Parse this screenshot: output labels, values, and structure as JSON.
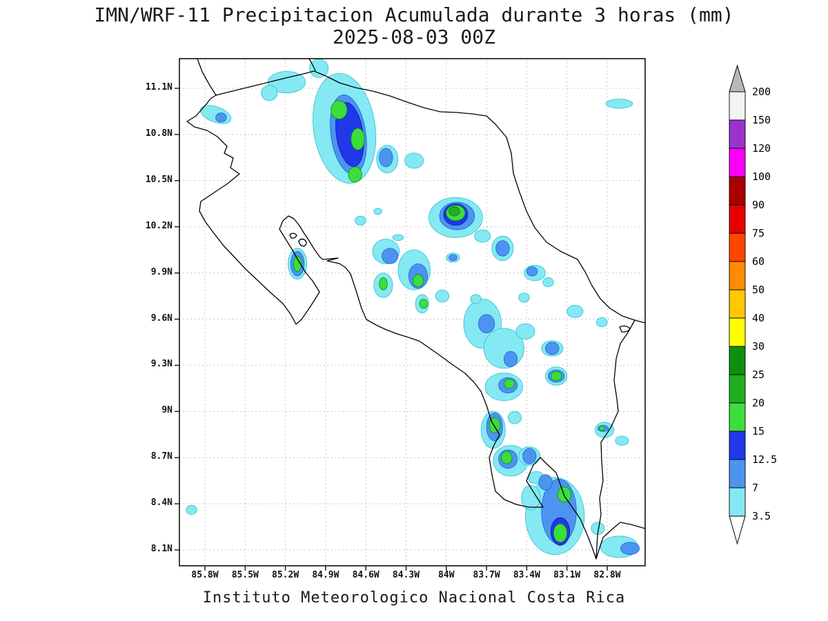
{
  "title": {
    "line1": "IMN/WRF-11 Precipitacion Acumulada durante 3 horas (mm)",
    "line2": "2025-08-03 00Z"
  },
  "footer": "Instituto Meteorologico Nacional Costa Rica",
  "map": {
    "lat_ticks": [
      "11.1N",
      "10.8N",
      "10.5N",
      "10.2N",
      "9.9N",
      "9.6N",
      "9.3N",
      "9N",
      "8.7N",
      "8.4N",
      "8.1N"
    ],
    "lon_ticks": [
      "85.8W",
      "85.5W",
      "85.2W",
      "84.9W",
      "84.6W",
      "84.3W",
      "84W",
      "83.7W",
      "83.4W",
      "83.1W",
      "82.8W"
    ]
  },
  "legend": {
    "labels": [
      "200",
      "150",
      "120",
      "100",
      "90",
      "75",
      "60",
      "50",
      "40",
      "30",
      "25",
      "20",
      "15",
      "12.5",
      "7",
      "3.5"
    ],
    "colors": [
      "#f2f2f2",
      "#9933cc",
      "#fa00fa",
      "#a80000",
      "#e80000",
      "#ff4500",
      "#ff8c00",
      "#ffc800",
      "#ffff00",
      "#0f8f0f",
      "#1fae1f",
      "#3ddd3d",
      "#2038e8",
      "#4d94f0",
      "#84e9f2"
    ],
    "above_color": "#b8b8b8",
    "below_color": "#ffffff"
  },
  "chart_data": {
    "type": "map-contour",
    "model": "IMN/WRF-11",
    "variable": "Precipitacion Acumulada durante 3 horas",
    "units": "mm",
    "valid_time": "2025-08-03 00Z",
    "region": "Costa Rica",
    "lat_range": [
      8.0,
      11.29
    ],
    "lon_range": [
      82.52,
      85.99
    ],
    "level_bounds_mm": [
      "3.5",
      "7",
      "12.5",
      "15",
      "20",
      "25",
      "30",
      "40",
      "50",
      "60",
      "75",
      "90",
      "100",
      "120",
      "150",
      "200"
    ],
    "level_key": {
      "c": "3.5-7",
      "b": "7-12.5",
      "db": "12.5-15",
      "g": "15-20",
      "dg": "20-25",
      "ddg": "25-30"
    },
    "precip_cells": [
      {
        "lat": 10.84,
        "lon": 84.76,
        "rx": 0.23,
        "ry": 0.36,
        "lvl": "c",
        "rot": -8
      },
      {
        "lat": 11.14,
        "lon": 85.19,
        "rx": 0.14,
        "ry": 0.07,
        "lvl": "c"
      },
      {
        "lat": 11.07,
        "lon": 85.32,
        "rx": 0.06,
        "ry": 0.05,
        "lvl": "c"
      },
      {
        "lat": 11.23,
        "lon": 84.95,
        "rx": 0.07,
        "ry": 0.06,
        "lvl": "c"
      },
      {
        "lat": 10.8,
        "lon": 84.73,
        "rx": 0.13,
        "ry": 0.26,
        "lvl": "b",
        "rot": -8
      },
      {
        "lat": 10.8,
        "lon": 84.72,
        "rx": 0.1,
        "ry": 0.21,
        "lvl": "db",
        "rot": -8
      },
      {
        "lat": 10.96,
        "lon": 84.8,
        "rx": 0.06,
        "ry": 0.06,
        "lvl": "g"
      },
      {
        "lat": 10.77,
        "lon": 84.66,
        "rx": 0.05,
        "ry": 0.07,
        "lvl": "g"
      },
      {
        "lat": 10.54,
        "lon": 84.68,
        "rx": 0.05,
        "ry": 0.05,
        "lvl": "g"
      },
      {
        "lat": 10.64,
        "lon": 84.44,
        "rx": 0.08,
        "ry": 0.09,
        "lvl": "c"
      },
      {
        "lat": 10.65,
        "lon": 84.45,
        "rx": 0.05,
        "ry": 0.06,
        "lvl": "b"
      },
      {
        "lat": 10.63,
        "lon": 84.24,
        "rx": 0.07,
        "ry": 0.05,
        "lvl": "c"
      },
      {
        "lat": 10.93,
        "lon": 85.72,
        "rx": 0.12,
        "ry": 0.05,
        "lvl": "c",
        "rot": 20
      },
      {
        "lat": 10.91,
        "lon": 85.68,
        "rx": 0.04,
        "ry": 0.03,
        "lvl": "b"
      },
      {
        "lat": 10.26,
        "lon": 83.93,
        "rx": 0.2,
        "ry": 0.13,
        "lvl": "c"
      },
      {
        "lat": 10.27,
        "lon": 83.92,
        "rx": 0.13,
        "ry": 0.09,
        "lvl": "b"
      },
      {
        "lat": 10.28,
        "lon": 83.93,
        "rx": 0.09,
        "ry": 0.07,
        "lvl": "db"
      },
      {
        "lat": 10.29,
        "lon": 83.93,
        "rx": 0.07,
        "ry": 0.05,
        "lvl": "g"
      },
      {
        "lat": 10.3,
        "lon": 83.94,
        "rx": 0.04,
        "ry": 0.03,
        "lvl": "dg"
      },
      {
        "lat": 10.14,
        "lon": 83.73,
        "rx": 0.06,
        "ry": 0.04,
        "lvl": "c"
      },
      {
        "lat": 10.06,
        "lon": 83.58,
        "rx": 0.08,
        "ry": 0.08,
        "lvl": "c"
      },
      {
        "lat": 10.06,
        "lon": 83.58,
        "rx": 0.05,
        "ry": 0.05,
        "lvl": "b"
      },
      {
        "lat": 9.96,
        "lon": 85.11,
        "rx": 0.07,
        "ry": 0.1,
        "lvl": "c"
      },
      {
        "lat": 9.96,
        "lon": 85.11,
        "rx": 0.05,
        "ry": 0.08,
        "lvl": "b"
      },
      {
        "lat": 9.96,
        "lon": 85.11,
        "rx": 0.03,
        "ry": 0.05,
        "lvl": "g"
      },
      {
        "lat": 10.04,
        "lon": 84.45,
        "rx": 0.1,
        "ry": 0.08,
        "lvl": "c"
      },
      {
        "lat": 10.01,
        "lon": 84.42,
        "rx": 0.06,
        "ry": 0.05,
        "lvl": "b"
      },
      {
        "lat": 9.92,
        "lon": 84.24,
        "rx": 0.12,
        "ry": 0.13,
        "lvl": "c"
      },
      {
        "lat": 9.88,
        "lon": 84.21,
        "rx": 0.07,
        "ry": 0.08,
        "lvl": "b"
      },
      {
        "lat": 9.85,
        "lon": 84.21,
        "rx": 0.04,
        "ry": 0.04,
        "lvl": "g"
      },
      {
        "lat": 9.82,
        "lon": 84.47,
        "rx": 0.07,
        "ry": 0.08,
        "lvl": "c"
      },
      {
        "lat": 9.83,
        "lon": 84.47,
        "rx": 0.03,
        "ry": 0.04,
        "lvl": "g"
      },
      {
        "lat": 9.7,
        "lon": 84.18,
        "rx": 0.05,
        "ry": 0.06,
        "lvl": "c"
      },
      {
        "lat": 9.7,
        "lon": 84.17,
        "rx": 0.03,
        "ry": 0.03,
        "lvl": "g"
      },
      {
        "lat": 9.75,
        "lon": 84.03,
        "rx": 0.05,
        "ry": 0.04,
        "lvl": "c"
      },
      {
        "lat": 9.9,
        "lon": 83.34,
        "rx": 0.08,
        "ry": 0.05,
        "lvl": "c"
      },
      {
        "lat": 9.91,
        "lon": 83.36,
        "rx": 0.04,
        "ry": 0.03,
        "lvl": "b"
      },
      {
        "lat": 9.84,
        "lon": 83.24,
        "rx": 0.04,
        "ry": 0.03,
        "lvl": "c"
      },
      {
        "lat": 9.65,
        "lon": 83.04,
        "rx": 0.06,
        "ry": 0.04,
        "lvl": "c"
      },
      {
        "lat": 9.58,
        "lon": 82.84,
        "rx": 0.04,
        "ry": 0.03,
        "lvl": "c"
      },
      {
        "lat": 9.57,
        "lon": 83.73,
        "rx": 0.14,
        "ry": 0.16,
        "lvl": "c"
      },
      {
        "lat": 9.41,
        "lon": 83.57,
        "rx": 0.15,
        "ry": 0.13,
        "lvl": "c"
      },
      {
        "lat": 9.57,
        "lon": 83.7,
        "rx": 0.06,
        "ry": 0.06,
        "lvl": "b"
      },
      {
        "lat": 9.34,
        "lon": 83.52,
        "rx": 0.05,
        "ry": 0.05,
        "lvl": "b"
      },
      {
        "lat": 9.52,
        "lon": 83.41,
        "rx": 0.07,
        "ry": 0.05,
        "lvl": "c"
      },
      {
        "lat": 9.41,
        "lon": 83.21,
        "rx": 0.08,
        "ry": 0.05,
        "lvl": "c"
      },
      {
        "lat": 9.41,
        "lon": 83.21,
        "rx": 0.05,
        "ry": 0.04,
        "lvl": "b"
      },
      {
        "lat": 9.23,
        "lon": 83.18,
        "rx": 0.08,
        "ry": 0.06,
        "lvl": "c"
      },
      {
        "lat": 9.23,
        "lon": 83.18,
        "rx": 0.06,
        "ry": 0.04,
        "lvl": "b"
      },
      {
        "lat": 9.23,
        "lon": 83.18,
        "rx": 0.04,
        "ry": 0.03,
        "lvl": "g"
      },
      {
        "lat": 9.16,
        "lon": 83.57,
        "rx": 0.14,
        "ry": 0.09,
        "lvl": "c"
      },
      {
        "lat": 9.17,
        "lon": 83.54,
        "rx": 0.07,
        "ry": 0.05,
        "lvl": "b"
      },
      {
        "lat": 9.18,
        "lon": 83.53,
        "rx": 0.04,
        "ry": 0.03,
        "lvl": "g"
      },
      {
        "lat": 8.88,
        "lon": 83.65,
        "rx": 0.09,
        "ry": 0.12,
        "lvl": "c"
      },
      {
        "lat": 8.9,
        "lon": 83.64,
        "rx": 0.06,
        "ry": 0.09,
        "lvl": "b"
      },
      {
        "lat": 8.91,
        "lon": 83.64,
        "rx": 0.04,
        "ry": 0.05,
        "lvl": "g"
      },
      {
        "lat": 8.96,
        "lon": 83.49,
        "rx": 0.05,
        "ry": 0.04,
        "lvl": "c"
      },
      {
        "lat": 8.88,
        "lon": 82.82,
        "rx": 0.07,
        "ry": 0.05,
        "lvl": "c"
      },
      {
        "lat": 8.89,
        "lon": 82.83,
        "rx": 0.04,
        "ry": 0.02,
        "lvl": "b"
      },
      {
        "lat": 8.89,
        "lon": 82.84,
        "rx": 0.02,
        "ry": 0.015,
        "lvl": "g"
      },
      {
        "lat": 8.81,
        "lon": 82.69,
        "rx": 0.05,
        "ry": 0.03,
        "lvl": "c"
      },
      {
        "lat": 8.68,
        "lon": 83.52,
        "rx": 0.13,
        "ry": 0.1,
        "lvl": "c"
      },
      {
        "lat": 8.69,
        "lon": 83.54,
        "rx": 0.07,
        "ry": 0.06,
        "lvl": "b"
      },
      {
        "lat": 8.7,
        "lon": 83.55,
        "rx": 0.04,
        "ry": 0.04,
        "lvl": "g"
      },
      {
        "lat": 8.71,
        "lon": 83.38,
        "rx": 0.08,
        "ry": 0.06,
        "lvl": "c"
      },
      {
        "lat": 8.71,
        "lon": 83.38,
        "rx": 0.05,
        "ry": 0.05,
        "lvl": "b"
      },
      {
        "lat": 8.57,
        "lon": 83.33,
        "rx": 0.06,
        "ry": 0.04,
        "lvl": "c"
      },
      {
        "lat": 8.32,
        "lon": 83.19,
        "rx": 0.22,
        "ry": 0.25,
        "lvl": "c"
      },
      {
        "lat": 8.35,
        "lon": 83.16,
        "rx": 0.13,
        "ry": 0.21,
        "lvl": "b"
      },
      {
        "lat": 8.22,
        "lon": 83.15,
        "rx": 0.07,
        "ry": 0.09,
        "lvl": "db"
      },
      {
        "lat": 8.46,
        "lon": 83.12,
        "rx": 0.05,
        "ry": 0.05,
        "lvl": "g"
      },
      {
        "lat": 8.21,
        "lon": 83.15,
        "rx": 0.05,
        "ry": 0.06,
        "lvl": "g"
      },
      {
        "lat": 8.54,
        "lon": 83.26,
        "rx": 0.05,
        "ry": 0.05,
        "lvl": "b"
      },
      {
        "lat": 8.44,
        "lon": 83.37,
        "rx": 0.07,
        "ry": 0.08,
        "lvl": "c"
      },
      {
        "lat": 8.12,
        "lon": 82.71,
        "rx": 0.14,
        "ry": 0.07,
        "lvl": "c"
      },
      {
        "lat": 8.11,
        "lon": 82.63,
        "rx": 0.07,
        "ry": 0.04,
        "lvl": "b"
      },
      {
        "lat": 8.24,
        "lon": 82.87,
        "rx": 0.05,
        "ry": 0.04,
        "lvl": "c"
      },
      {
        "lat": 8.36,
        "lon": 85.9,
        "rx": 0.04,
        "ry": 0.03,
        "lvl": "c"
      },
      {
        "lat": 10.24,
        "lon": 84.64,
        "rx": 0.04,
        "ry": 0.03,
        "lvl": "c"
      },
      {
        "lat": 10.3,
        "lon": 84.51,
        "rx": 0.03,
        "ry": 0.02,
        "lvl": "c"
      },
      {
        "lat": 10.13,
        "lon": 84.36,
        "rx": 0.04,
        "ry": 0.02,
        "lvl": "c"
      },
      {
        "lat": 10.0,
        "lon": 83.95,
        "rx": 0.05,
        "ry": 0.03,
        "lvl": "c"
      },
      {
        "lat": 10.0,
        "lon": 83.95,
        "rx": 0.03,
        "ry": 0.02,
        "lvl": "b"
      },
      {
        "lat": 9.73,
        "lon": 83.78,
        "rx": 0.04,
        "ry": 0.03,
        "lvl": "c"
      },
      {
        "lat": 9.74,
        "lon": 83.42,
        "rx": 0.04,
        "ry": 0.03,
        "lvl": "c"
      },
      {
        "lat": 11.0,
        "lon": 82.71,
        "rx": 0.1,
        "ry": 0.03,
        "lvl": "c"
      }
    ]
  }
}
